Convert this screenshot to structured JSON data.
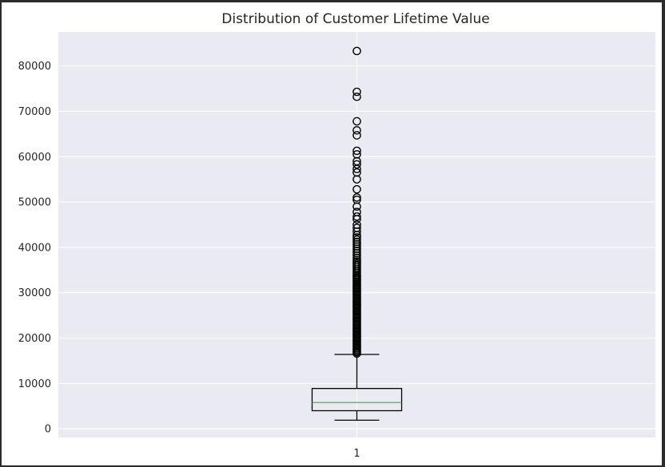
{
  "chart_data": {
    "type": "box",
    "title": "Distribution of Customer Lifetime Value",
    "xlabel": "",
    "ylabel": "",
    "categories": [
      "1"
    ],
    "ylim": [
      -1900,
      87500
    ],
    "y_ticks": [
      0,
      10000,
      20000,
      30000,
      40000,
      50000,
      60000,
      70000,
      80000
    ],
    "grid": true,
    "colors": {
      "axes_background": "#eaeaf2",
      "grid": "#ffffff",
      "box": "#000000",
      "median": "#55a868"
    },
    "boxes": [
      {
        "category": "1",
        "whisker_low": 1900,
        "q1": 4000,
        "median": 5800,
        "q3": 8900,
        "whisker_high": 16400,
        "outliers": [
          16600,
          16900,
          17200,
          17500,
          17800,
          18100,
          18400,
          18700,
          19000,
          19300,
          19600,
          19900,
          20200,
          20500,
          20800,
          21100,
          21400,
          21700,
          22000,
          22300,
          22600,
          22900,
          23200,
          23500,
          23800,
          24100,
          24400,
          24700,
          25000,
          25300,
          25600,
          25900,
          26200,
          26500,
          26800,
          27100,
          27400,
          27700,
          28000,
          28300,
          28600,
          28900,
          29200,
          29500,
          29800,
          30100,
          30400,
          30700,
          31000,
          31300,
          31600,
          31900,
          32200,
          32500,
          32800,
          33100,
          33400,
          33700,
          34000,
          34400,
          34800,
          35200,
          35600,
          36000,
          36400,
          36800,
          37200,
          37700,
          38200,
          38700,
          39200,
          39700,
          40200,
          40700,
          41200,
          41700,
          42200,
          42700,
          43500,
          44300,
          45000,
          46200,
          46800,
          47800,
          49000,
          50500,
          51000,
          52800,
          55000,
          56500,
          57300,
          58300,
          59000,
          60500,
          61300,
          64700,
          65800,
          67800,
          73200,
          74300,
          83300
        ]
      }
    ]
  }
}
